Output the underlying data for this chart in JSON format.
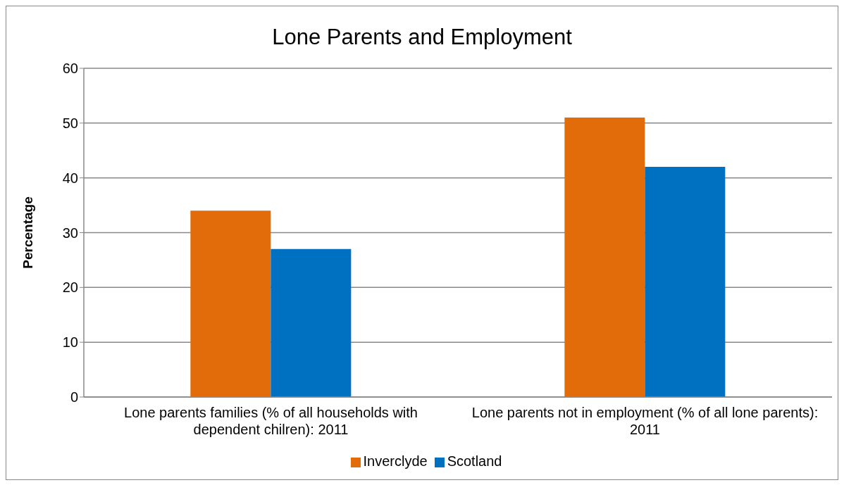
{
  "chart_data": {
    "type": "bar",
    "title": "Lone Parents and Employment",
    "ylabel": "Percentage",
    "categories": [
      "Lone parents families (% of all households with dependent chilren): 2011",
      "Lone parents not in employment (% of all lone parents): 2011"
    ],
    "series": [
      {
        "name": "Inverclyde",
        "color": "#e36c0a",
        "values": [
          34,
          51
        ]
      },
      {
        "name": "Scotland",
        "color": "#0070c0",
        "values": [
          27,
          42
        ]
      }
    ],
    "ylim": [
      0,
      60
    ],
    "yticks": [
      0,
      10,
      20,
      30,
      40,
      50,
      60
    ],
    "grid": "y",
    "legend": "bottom"
  }
}
